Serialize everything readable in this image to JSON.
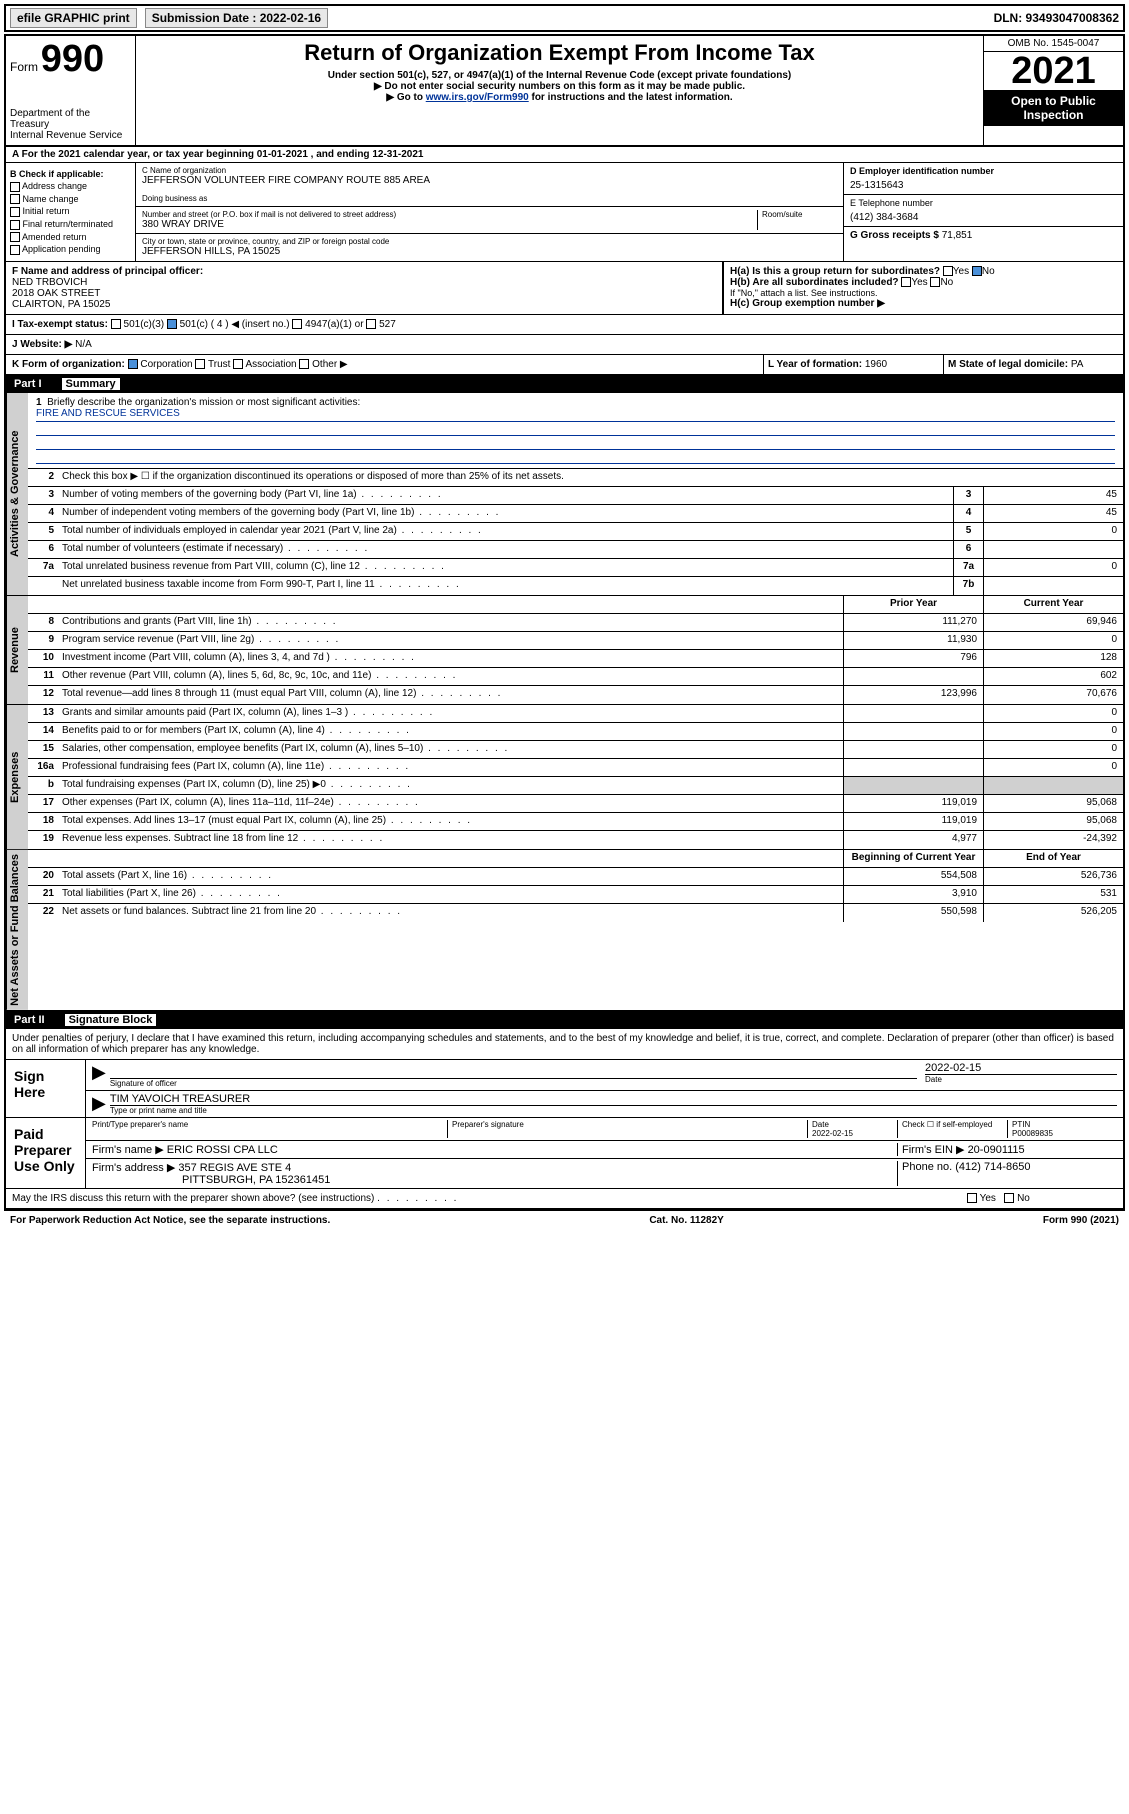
{
  "topbar": {
    "efile": "efile GRAPHIC print",
    "submission_label": "Submission Date : 2022-02-16",
    "dln_label": "DLN: 93493047008362"
  },
  "header": {
    "form_word": "Form",
    "form_number": "990",
    "dept": "Department of the Treasury",
    "irs": "Internal Revenue Service",
    "title": "Return of Organization Exempt From Income Tax",
    "sub1": "Under section 501(c), 527, or 4947(a)(1) of the Internal Revenue Code (except private foundations)",
    "sub2": "▶ Do not enter social security numbers on this form as it may be made public.",
    "sub3_pre": "▶ Go to ",
    "sub3_link": "www.irs.gov/Form990",
    "sub3_post": " for instructions and the latest information.",
    "omb": "OMB No. 1545-0047",
    "year": "2021",
    "open": "Open to Public Inspection"
  },
  "row_a": "A For the 2021 calendar year, or tax year beginning 01-01-2021   , and ending 12-31-2021",
  "section_b": {
    "label": "B Check if applicable:",
    "items": [
      "Address change",
      "Name change",
      "Initial return",
      "Final return/terminated",
      "Amended return",
      "Application pending"
    ]
  },
  "section_c": {
    "name_label": "C Name of organization",
    "name": "JEFFERSON VOLUNTEER FIRE COMPANY ROUTE 885 AREA",
    "dba_label": "Doing business as",
    "street_label": "Number and street (or P.O. box if mail is not delivered to street address)",
    "room_label": "Room/suite",
    "street": "380 WRAY DRIVE",
    "city_label": "City or town, state or province, country, and ZIP or foreign postal code",
    "city": "JEFFERSON HILLS, PA  15025"
  },
  "section_d": {
    "ein_label": "D Employer identification number",
    "ein": "25-1315643",
    "phone_label": "E Telephone number",
    "phone": "(412) 384-3684",
    "gross_label": "G Gross receipts $",
    "gross": "71,851"
  },
  "section_f": {
    "label": "F  Name and address of principal officer:",
    "name": "NED TRBOVICH",
    "street": "2018 OAK STREET",
    "city": "CLAIRTON, PA  15025"
  },
  "section_h": {
    "ha": "H(a)  Is this a group return for subordinates?",
    "hb": "H(b)  Are all subordinates included?",
    "hb_note": "If \"No,\" attach a list. See instructions.",
    "hc": "H(c)  Group exemption number ▶",
    "yes": "Yes",
    "no": "No"
  },
  "row_i": {
    "label": "I   Tax-exempt status:",
    "opt1": "501(c)(3)",
    "opt2": "501(c) ( 4 ) ◀ (insert no.)",
    "opt3": "4947(a)(1) or",
    "opt4": "527"
  },
  "row_j": {
    "label": "J   Website: ▶",
    "value": "N/A"
  },
  "row_k": {
    "label": "K Form of organization:",
    "opts": [
      "Corporation",
      "Trust",
      "Association",
      "Other ▶"
    ]
  },
  "row_l": {
    "label": "L Year of formation:",
    "value": "1960"
  },
  "row_m": {
    "label": "M State of legal domicile:",
    "value": "PA"
  },
  "part1": {
    "header": "Part I",
    "title": "Summary",
    "q1": "Briefly describe the organization's mission or most significant activities:",
    "mission": "FIRE AND RESCUE SERVICES",
    "q2": "Check this box ▶ ☐  if the organization discontinued its operations or disposed of more than 25% of its net assets.",
    "governance_label": "Activities & Governance",
    "revenue_label": "Revenue",
    "expenses_label": "Expenses",
    "netassets_label": "Net Assets or Fund Balances",
    "prior_year": "Prior Year",
    "current_year": "Current Year",
    "beg_year": "Beginning of Current Year",
    "end_year": "End of Year",
    "rows_gov": [
      {
        "n": "3",
        "t": "Number of voting members of the governing body (Part VI, line 1a)",
        "box": "3",
        "v": "45"
      },
      {
        "n": "4",
        "t": "Number of independent voting members of the governing body (Part VI, line 1b)",
        "box": "4",
        "v": "45"
      },
      {
        "n": "5",
        "t": "Total number of individuals employed in calendar year 2021 (Part V, line 2a)",
        "box": "5",
        "v": "0"
      },
      {
        "n": "6",
        "t": "Total number of volunteers (estimate if necessary)",
        "box": "6",
        "v": ""
      },
      {
        "n": "7a",
        "t": "Total unrelated business revenue from Part VIII, column (C), line 12",
        "box": "7a",
        "v": "0"
      },
      {
        "n": "",
        "t": "Net unrelated business taxable income from Form 990-T, Part I, line 11",
        "box": "7b",
        "v": ""
      }
    ],
    "rows_rev": [
      {
        "n": "8",
        "t": "Contributions and grants (Part VIII, line 1h)",
        "p": "111,270",
        "c": "69,946"
      },
      {
        "n": "9",
        "t": "Program service revenue (Part VIII, line 2g)",
        "p": "11,930",
        "c": "0"
      },
      {
        "n": "10",
        "t": "Investment income (Part VIII, column (A), lines 3, 4, and 7d )",
        "p": "796",
        "c": "128"
      },
      {
        "n": "11",
        "t": "Other revenue (Part VIII, column (A), lines 5, 6d, 8c, 9c, 10c, and 11e)",
        "p": "",
        "c": "602"
      },
      {
        "n": "12",
        "t": "Total revenue—add lines 8 through 11 (must equal Part VIII, column (A), line 12)",
        "p": "123,996",
        "c": "70,676"
      }
    ],
    "rows_exp": [
      {
        "n": "13",
        "t": "Grants and similar amounts paid (Part IX, column (A), lines 1–3 )",
        "p": "",
        "c": "0"
      },
      {
        "n": "14",
        "t": "Benefits paid to or for members (Part IX, column (A), line 4)",
        "p": "",
        "c": "0"
      },
      {
        "n": "15",
        "t": "Salaries, other compensation, employee benefits (Part IX, column (A), lines 5–10)",
        "p": "",
        "c": "0"
      },
      {
        "n": "16a",
        "t": "Professional fundraising fees (Part IX, column (A), line 11e)",
        "p": "",
        "c": "0"
      },
      {
        "n": "b",
        "t": "Total fundraising expenses (Part IX, column (D), line 25) ▶0",
        "p": "gray",
        "c": "gray"
      },
      {
        "n": "17",
        "t": "Other expenses (Part IX, column (A), lines 11a–11d, 11f–24e)",
        "p": "119,019",
        "c": "95,068"
      },
      {
        "n": "18",
        "t": "Total expenses. Add lines 13–17 (must equal Part IX, column (A), line 25)",
        "p": "119,019",
        "c": "95,068"
      },
      {
        "n": "19",
        "t": "Revenue less expenses. Subtract line 18 from line 12",
        "p": "4,977",
        "c": "-24,392"
      }
    ],
    "rows_net": [
      {
        "n": "20",
        "t": "Total assets (Part X, line 16)",
        "p": "554,508",
        "c": "526,736"
      },
      {
        "n": "21",
        "t": "Total liabilities (Part X, line 26)",
        "p": "3,910",
        "c": "531"
      },
      {
        "n": "22",
        "t": "Net assets or fund balances. Subtract line 21 from line 20",
        "p": "550,598",
        "c": "526,205"
      }
    ]
  },
  "part2": {
    "header": "Part II",
    "title": "Signature Block",
    "decl": "Under penalties of perjury, I declare that I have examined this return, including accompanying schedules and statements, and to the best of my knowledge and belief, it is true, correct, and complete. Declaration of preparer (other than officer) is based on all information of which preparer has any knowledge.",
    "sign_here": "Sign Here",
    "sig_officer": "Signature of officer",
    "sig_date": "2022-02-15",
    "date_label": "Date",
    "officer_name": "TIM YAVOICH  TREASURER",
    "type_name": "Type or print name and title",
    "paid": "Paid Preparer Use Only",
    "prep_name_label": "Print/Type preparer's name",
    "prep_sig_label": "Preparer's signature",
    "prep_date": "2022-02-15",
    "self_emp": "Check ☐ if self-employed",
    "ptin_label": "PTIN",
    "ptin": "P00089835",
    "firm_name_label": "Firm's name    ▶",
    "firm_name": "ERIC ROSSI CPA LLC",
    "firm_ein_label": "Firm's EIN ▶",
    "firm_ein": "20-0901115",
    "firm_addr_label": "Firm's address ▶",
    "firm_addr": "357 REGIS AVE STE 4",
    "firm_city": "PITTSBURGH, PA  152361451",
    "firm_phone_label": "Phone no.",
    "firm_phone": "(412) 714-8650",
    "discuss": "May the IRS discuss this return with the preparer shown above? (see instructions)"
  },
  "footer": {
    "left": "For Paperwork Reduction Act Notice, see the separate instructions.",
    "mid": "Cat. No. 11282Y",
    "right": "Form 990 (2021)"
  }
}
